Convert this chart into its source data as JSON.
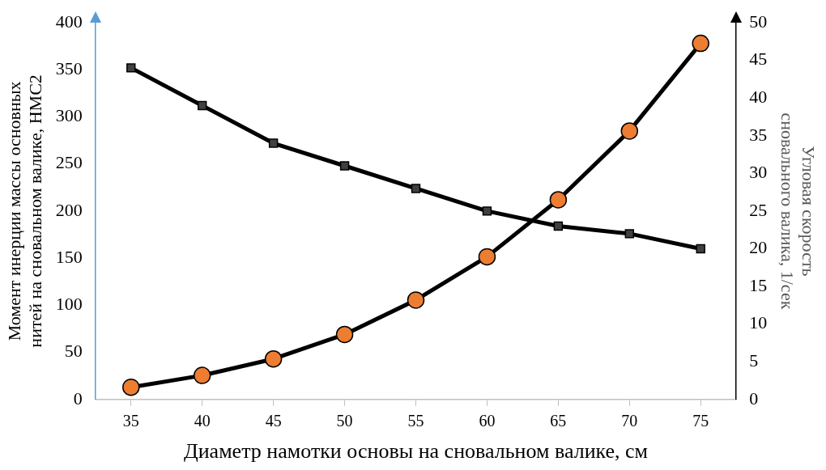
{
  "chart_data": {
    "type": "line",
    "xlabel": "Диаметр намотки основы на сновальном валике, см",
    "ylabel": "Момент инерции массы основных нитей на сновальном валике, НМС2",
    "y2label": "Угловая скорость сновального валика, 1/сек",
    "categories": [
      "35",
      "40",
      "45",
      "50",
      "55",
      "60",
      "65",
      "70",
      "75"
    ],
    "series": [
      {
        "color": "#ed7d31",
        "marker": "circle",
        "values": [
          13,
          25.5,
          43,
          69,
          105.5,
          151.5,
          212,
          285,
          378
        ]
      },
      {
        "color": "#404040",
        "marker": "square",
        "axis": "y2",
        "values": [
          44,
          39,
          34,
          31,
          28,
          25,
          23,
          22,
          20
        ]
      }
    ],
    "ylim": [
      0,
      400
    ],
    "yticks": [
      0,
      50,
      100,
      150,
      200,
      250,
      300,
      350,
      400
    ],
    "y2lim": [
      0,
      50
    ],
    "y2ticks": [
      0,
      5,
      10,
      15,
      20,
      25,
      30,
      35,
      40,
      45,
      50
    ],
    "grid": false,
    "legend": false,
    "line_style": "solid"
  }
}
